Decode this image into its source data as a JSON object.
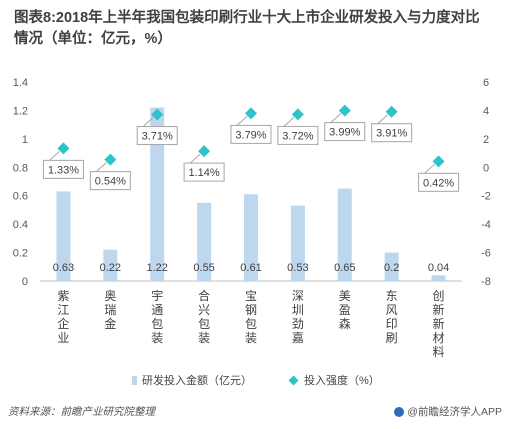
{
  "title": "图表8:2018年上半年我国包装印刷行业十大上市企业研发投入与力度对比情况（单位：亿元，%）",
  "chart_data": {
    "type": "bar",
    "categories": [
      "紫江企业",
      "奥瑞金",
      "宇通包装",
      "合兴包装",
      "宝钢包装",
      "深圳劲嘉",
      "美盈森",
      "东风印刷",
      "创新新材料"
    ],
    "series": [
      {
        "name": "研发投入金额（亿元）",
        "type": "bar",
        "axis": "left",
        "values": [
          0.63,
          0.22,
          1.22,
          0.55,
          0.61,
          0.53,
          0.65,
          0.2,
          0.04
        ],
        "labels": [
          "0.63",
          "0.22",
          "1.22",
          "0.55",
          "0.61",
          "0.53",
          "0.65",
          "0.2",
          "0.04"
        ]
      },
      {
        "name": "投入强度（%）",
        "type": "scatter",
        "axis": "right",
        "values": [
          1.33,
          0.54,
          3.71,
          1.14,
          3.79,
          3.72,
          3.99,
          3.91,
          0.42
        ],
        "labels": [
          "1.33%",
          "0.54%",
          "3.71%",
          "1.14%",
          "3.79%",
          "3.72%",
          "3.99%",
          "3.91%",
          "0.42%"
        ]
      }
    ],
    "y_left": {
      "min": 0,
      "max": 1.4,
      "ticks": [
        "0",
        "0.2",
        "0.4",
        "0.6",
        "0.8",
        "1",
        "1.2",
        "1.4"
      ]
    },
    "y_right": {
      "min": -8,
      "max": 6,
      "ticks": [
        "-8",
        "-6",
        "-4",
        "-2",
        "0",
        "2",
        "4",
        "6"
      ]
    },
    "colors": {
      "bar": "#bdd7ee",
      "marker": "#2ec3c9",
      "label_border": "#a6a6a6"
    },
    "legend_position": "bottom"
  },
  "legend": {
    "bar_label": "研发投入金额（亿元）",
    "marker_label": "投入强度（%）"
  },
  "footer": {
    "source": "资料来源：前瞻产业研究院整理",
    "brand": "@前瞻经济学人APP"
  }
}
